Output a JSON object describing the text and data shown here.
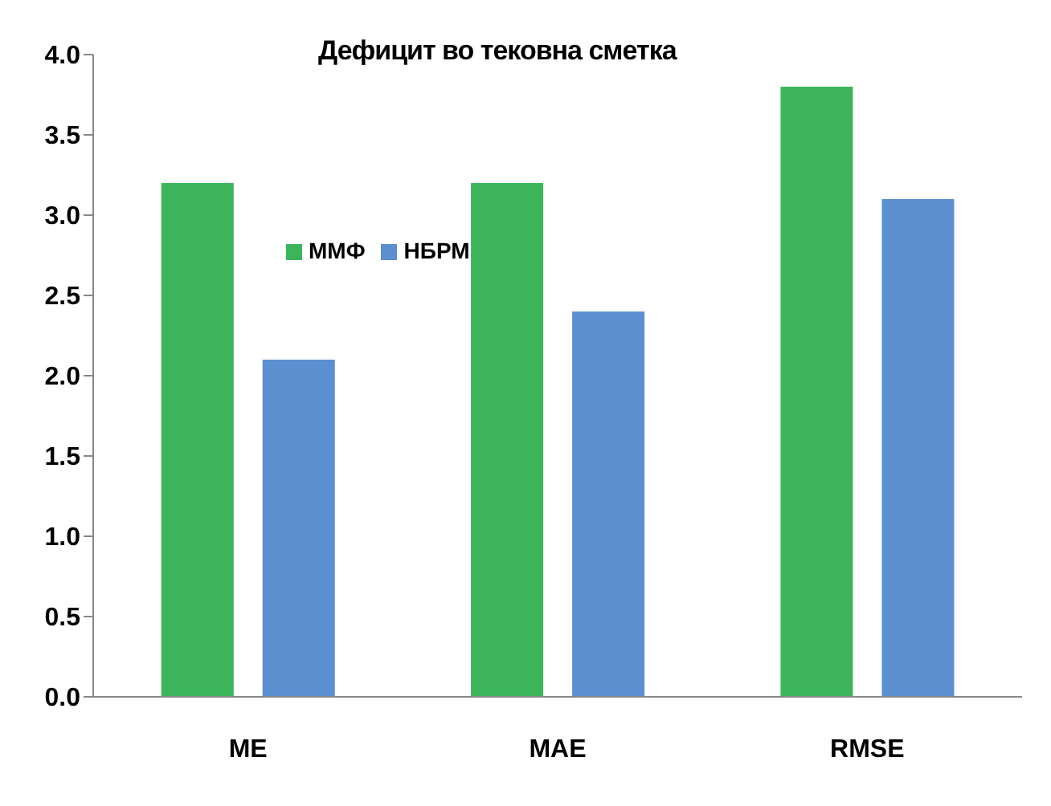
{
  "chart_data": {
    "type": "bar",
    "title": "Дефицит во тековна сметка",
    "categories": [
      "ME",
      "MAE",
      "RMSE"
    ],
    "series": [
      {
        "name": "ММФ",
        "color": "#3cb55a",
        "values": [
          3.2,
          3.2,
          3.8
        ]
      },
      {
        "name": "НБРМ",
        "color": "#5b8fd0",
        "values": [
          2.1,
          2.4,
          3.1
        ]
      }
    ],
    "ylim": [
      0,
      4
    ],
    "yticks": [
      {
        "value": 0,
        "label": "0.0"
      },
      {
        "value": 0.5,
        "label": "0.5"
      },
      {
        "value": 1,
        "label": "1.0"
      },
      {
        "value": 1.5,
        "label": "1.5"
      },
      {
        "value": 2,
        "label": "2.0"
      },
      {
        "value": 2.5,
        "label": "2.5"
      },
      {
        "value": 3,
        "label": "3.0"
      },
      {
        "value": 3.5,
        "label": "3.5"
      },
      {
        "value": 4,
        "label": "4.0"
      }
    ],
    "grid": false,
    "legend": "top left"
  }
}
